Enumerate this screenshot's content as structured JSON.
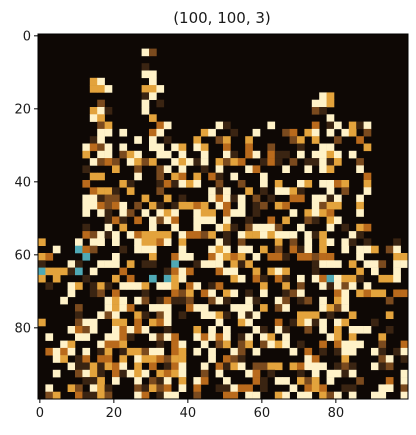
{
  "figure": {
    "title": "(100, 100, 3)"
  },
  "chart_data": {
    "type": "heatmap",
    "title": "(100, 100, 3)",
    "xlabel": "",
    "ylabel": "",
    "image_shape": [
      100,
      100,
      3
    ],
    "xlim": [
      -0.5,
      99.5
    ],
    "ylim": [
      99.5,
      -0.5
    ],
    "x_ticks": [
      0,
      20,
      40,
      60,
      80
    ],
    "y_ticks": [
      0,
      20,
      40,
      60,
      80
    ],
    "grid": false,
    "colors": {
      "background": "#0e0805",
      "highlight": "#fff2c8",
      "warm": "#e3a33c",
      "amber": "#b96a1c",
      "teal": "#4fa9b5"
    }
  }
}
